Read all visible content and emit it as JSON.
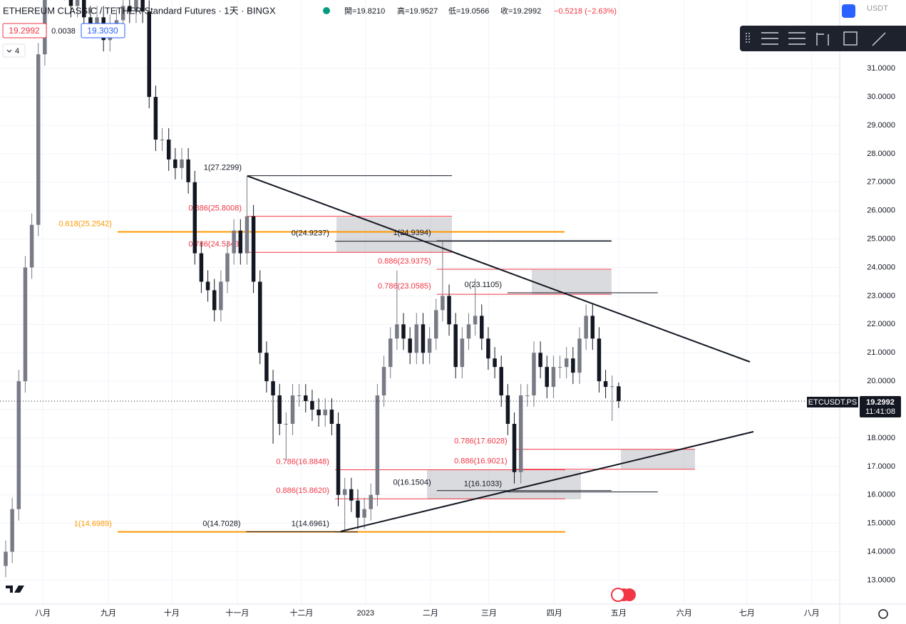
{
  "header": {
    "symbol": "ETHEREUM CLASSIC / TETHER Standard Futures · 1天 · BINGX",
    "ohlc": [
      "開=19.8210",
      "高=19.9527",
      "低=19.0566",
      "收=19.2992"
    ],
    "change": "−0.5218 (−2.63%)",
    "bid": "19.2992",
    "spread": "0.0038",
    "ask": "19.3030",
    "indicators": "4",
    "currency": "USDT"
  },
  "price_tag": {
    "symbol": "ETCUSDT.PS",
    "price": "19.2992",
    "countdown": "11:41:08"
  },
  "chart_data": {
    "type": "candlestick",
    "up_color": "#787b86",
    "down_color": "#131722",
    "xlim": [
      -0.874,
      127.9
    ],
    "ylim": [
      12.16,
      33.41
    ],
    "xticks": [
      {
        "value": 5.68,
        "label": "八月"
      },
      {
        "value": 15.74,
        "label": "九月"
      },
      {
        "value": 25.46,
        "label": "十月"
      },
      {
        "value": 35.52,
        "label": "十一月"
      },
      {
        "value": 45.36,
        "label": "十二月"
      },
      {
        "value": 55.19,
        "label": "2023"
      },
      {
        "value": 65.14,
        "label": "二月"
      },
      {
        "value": 74.1,
        "label": "三月"
      },
      {
        "value": 84.15,
        "label": "四月"
      },
      {
        "value": 94,
        "label": "五月"
      },
      {
        "value": 104.04,
        "label": "六月"
      },
      {
        "value": 113.66,
        "label": "七月"
      },
      {
        "value": 123.6,
        "label": "八月"
      }
    ],
    "yticks": [
      {
        "value": 13,
        "label": "13.0000"
      },
      {
        "value": 14,
        "label": "14.0000"
      },
      {
        "value": 15,
        "label": "15.0000"
      },
      {
        "value": 16,
        "label": "16.0000"
      },
      {
        "value": 17,
        "label": "17.0000"
      },
      {
        "value": 18,
        "label": "18.0000"
      },
      {
        "value": 19,
        "label": "19.0000"
      },
      {
        "value": 20,
        "label": "20.0000"
      },
      {
        "value": 21,
        "label": "21.0000"
      },
      {
        "value": 22,
        "label": "22.0000"
      },
      {
        "value": 23,
        "label": "23.0000"
      },
      {
        "value": 24,
        "label": "24.0000"
      },
      {
        "value": 25,
        "label": "25.0000"
      },
      {
        "value": 26,
        "label": "26.0000"
      },
      {
        "value": 27,
        "label": "27.0000"
      },
      {
        "value": 28,
        "label": "28.0000"
      },
      {
        "value": 29,
        "label": "29.0000"
      },
      {
        "value": 30,
        "label": "30.0000"
      },
      {
        "value": 31,
        "label": "31.0000"
      }
    ],
    "grid": true,
    "open": [
      13.5,
      14.0,
      15.5,
      20.0,
      24.0,
      25.5,
      31.5,
      34.5,
      35.0,
      34.0,
      33.8,
      33.2,
      33.5,
      32.8,
      32.5,
      32.8,
      32.0,
      32.5,
      32.7,
      33.2,
      33.0,
      33.5,
      33.0,
      30.0,
      28.5,
      28.5,
      27.8,
      27.5,
      27.8,
      27.0,
      24.5,
      23.5,
      23.2,
      22.5,
      23.5,
      24.5,
      25.3,
      24.5,
      25.8,
      23.5,
      21.0,
      20.0,
      19.5,
      18.5,
      18.5,
      19.5,
      19.5,
      19.3,
      19.0,
      18.8,
      19.0,
      18.5,
      16.0,
      16.2,
      15.8,
      15.2,
      15.5,
      16.0,
      19.5,
      20.5,
      21.5,
      22.0,
      21.5,
      21.0,
      22.0,
      21.0,
      21.5,
      22.5,
      23.0,
      22.0,
      20.5,
      21.5,
      22.0,
      22.3,
      21.5,
      20.8,
      20.5,
      19.5,
      18.5,
      16.8,
      19.5,
      19.5,
      21.0,
      20.5,
      19.8,
      20.5,
      20.5,
      20.8,
      20.3,
      21.5,
      22.3,
      21.5,
      20.0,
      19.8,
      19.821
    ],
    "high": [
      14.4,
      15.9,
      20.4,
      24.4,
      25.9,
      31.9,
      34.9,
      35.4,
      35.4,
      34.4,
      34.2,
      33.9,
      33.9,
      33.2,
      33.2,
      33.2,
      32.9,
      33.1,
      33.6,
      33.6,
      33.9,
      33.9,
      33.4,
      30.4,
      28.9,
      28.9,
      28.2,
      28.2,
      28.2,
      27.4,
      24.9,
      23.9,
      23.6,
      23.9,
      24.9,
      25.7,
      25.7,
      27.2299,
      26.2,
      23.9,
      21.4,
      20.4,
      19.9,
      18.9,
      19.9,
      19.9,
      19.9,
      19.7,
      19.4,
      19.4,
      19.4,
      18.9,
      16.6,
      16.6,
      16.2,
      15.9,
      16.4,
      19.9,
      20.9,
      21.9,
      23.9,
      22.4,
      21.9,
      22.4,
      22.4,
      21.9,
      22.9,
      24.9,
      23.4,
      22.4,
      21.9,
      22.4,
      23.6,
      22.7,
      21.9,
      21.2,
      20.9,
      19.9,
      18.9,
      19.9,
      19.9,
      21.4,
      21.4,
      20.9,
      20.9,
      20.9,
      21.2,
      21.2,
      21.9,
      22.7,
      22.7,
      21.9,
      20.4,
      20.2,
      19.9527
    ],
    "low": [
      13.1,
      13.6,
      15.1,
      19.6,
      23.6,
      25.1,
      31.1,
      34.1,
      33.6,
      33.4,
      32.8,
      32.8,
      32.4,
      32.1,
      32.1,
      31.6,
      31.6,
      32.1,
      32.3,
      32.6,
      32.6,
      32.6,
      29.6,
      28.1,
      28.1,
      27.4,
      27.1,
      27.1,
      26.6,
      24.1,
      23.1,
      22.8,
      22.1,
      22.1,
      23.1,
      24.1,
      24.1,
      24.1,
      23.1,
      20.6,
      19.6,
      17.8,
      18.1,
      17.2,
      18.1,
      19.1,
      18.9,
      18.6,
      18.4,
      18.4,
      18.1,
      15.6,
      14.7028,
      15.4,
      14.8,
      14.8,
      15.1,
      15.6,
      19.1,
      20.1,
      21.1,
      21.1,
      20.6,
      20.6,
      20.6,
      20.6,
      21.1,
      22.1,
      21.6,
      20.1,
      20.1,
      21.1,
      21.6,
      21.1,
      20.4,
      20.1,
      19.1,
      18.1,
      16.4,
      16.4,
      19.1,
      19.1,
      20.1,
      19.4,
      19.4,
      20.1,
      20.1,
      19.9,
      19.9,
      21.1,
      21.1,
      19.6,
      19.4,
      18.6,
      19.0566
    ],
    "close": [
      14.0,
      15.5,
      20.0,
      24.0,
      25.5,
      31.5,
      34.5,
      35.0,
      34.0,
      33.8,
      33.2,
      33.5,
      32.8,
      32.5,
      32.8,
      32.0,
      32.5,
      32.7,
      33.2,
      33.0,
      33.5,
      33.0,
      30.0,
      28.5,
      28.5,
      27.8,
      27.5,
      27.8,
      27.0,
      24.5,
      23.5,
      23.2,
      22.5,
      23.5,
      24.5,
      25.3,
      24.5,
      25.8,
      23.5,
      21.0,
      20.0,
      19.5,
      18.5,
      18.5,
      19.5,
      19.5,
      19.3,
      19.0,
      18.8,
      19.0,
      18.5,
      16.0,
      16.2,
      15.8,
      15.2,
      15.5,
      16.0,
      19.5,
      20.5,
      21.5,
      22.0,
      21.5,
      21.0,
      22.0,
      21.0,
      21.5,
      22.5,
      23.0,
      22.0,
      20.5,
      21.5,
      22.0,
      22.3,
      21.5,
      20.8,
      20.5,
      19.5,
      18.5,
      16.8,
      19.5,
      19.5,
      21.0,
      20.5,
      19.8,
      20.5,
      20.5,
      20.8,
      20.3,
      21.5,
      22.3,
      21.5,
      20.0,
      19.8,
      19.821,
      19.2992
    ],
    "drawings": [
      {
        "label": "1(27.2299)",
        "price": 27.2299,
        "from": 37.06,
        "to": 68.43,
        "color": "#131722"
      },
      {
        "label": "0.886(25.8008)",
        "price": 25.8008,
        "from": 37.06,
        "to": 68.43,
        "color": "#f23645"
      },
      {
        "label": "0.618(25.2542)",
        "price": 25.2542,
        "from": 17.16,
        "to": 85.7,
        "color": "#ff9800"
      },
      {
        "label": "0.786(24.5343)",
        "price": 24.5343,
        "from": 37.06,
        "to": 68.43,
        "color": "#f23645"
      },
      {
        "label": "0(24.9237)",
        "price": 24.9237,
        "from": 50.5,
        "to": 92.9,
        "color": "#131722"
      },
      {
        "label": "1(24.9394)",
        "price": 24.9394,
        "from": 66.1,
        "to": 92.9,
        "color": "#131722"
      },
      {
        "label": "0.886(23.9375)",
        "price": 23.9375,
        "from": 66.1,
        "to": 92.9,
        "color": "#f23645"
      },
      {
        "label": "0.786(23.0585)",
        "price": 23.0585,
        "from": 66.1,
        "to": 92.9,
        "color": "#f23645"
      },
      {
        "label": "0(23.1105)",
        "price": 23.1105,
        "from": 76.96,
        "to": 100,
        "color": "#131722"
      },
      {
        "label": "0.786(17.6028)",
        "price": 17.6028,
        "from": 77.8,
        "to": 105.7,
        "color": "#f23645"
      },
      {
        "label": "0.886(16.9021)",
        "price": 16.9021,
        "from": 77.8,
        "to": 105.7,
        "color": "#f23645"
      },
      {
        "label": "1(16.1033)",
        "price": 16.1033,
        "from": 76.96,
        "to": 100,
        "color": "#131722"
      },
      {
        "label": "0(16.1504)",
        "price": 16.1504,
        "from": 66.1,
        "to": 92.9,
        "color": "#131722"
      },
      {
        "label": "0.786(16.8848)",
        "price": 16.8848,
        "from": 50.5,
        "to": 85.8,
        "color": "#f23645"
      },
      {
        "label": "0.886(15.8620)",
        "price": 15.862,
        "from": 50.5,
        "to": 85.8,
        "color": "#f23645"
      },
      {
        "label": "1(14.6989)",
        "price": 14.6989,
        "from": 17.16,
        "to": 85.8,
        "color": "#ff9800"
      },
      {
        "label": "0(14.7028)",
        "price": 14.7028,
        "from": 36.9,
        "to": 51.4,
        "color": "#131722"
      },
      {
        "label": "1(14.6961)",
        "price": 14.6961,
        "from": 50.5,
        "to": 54,
        "color": "#131722"
      }
    ]
  }
}
